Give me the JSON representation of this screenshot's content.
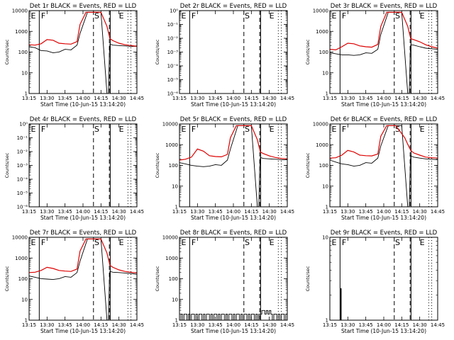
{
  "figure": {
    "background": "#ffffff"
  },
  "colors": {
    "events": "#000000",
    "lld": "#dd0000",
    "axes": "#000000"
  },
  "common": {
    "x_ticks": [
      "13:15",
      "13:30",
      "13:45",
      "14:00",
      "14:15",
      "14:30",
      "14:45"
    ],
    "x_label": "Start Time (10-Jun-15 13:14:20)",
    "y_label": "Counts/sec",
    "x_range_min": [
      0,
      36
    ],
    "marker_lines_min": {
      "solid": [
        3.4,
        27.1
      ],
      "dashed": [
        21.5,
        26.8
      ],
      "dotted": [
        33.0,
        34.0
      ]
    }
  },
  "chart_data": [
    {
      "type": "line",
      "title": "Det 1r BLACK = Events, RED = LLD",
      "yscale": "log",
      "ylim": [
        1,
        12000
      ],
      "y_ticks": [
        "1",
        "10",
        "100",
        "1000",
        "10000"
      ],
      "marker_labels": [
        "E",
        "F",
        "S",
        "E"
      ],
      "series": [
        {
          "name": "Events",
          "color": "#000000",
          "x": [
            0,
            2,
            4,
            6,
            8,
            10,
            12,
            14,
            16,
            17,
            19.5,
            20,
            22,
            24,
            26,
            26.5,
            26.8,
            27,
            28,
            30,
            32,
            34,
            36
          ],
          "y": [
            200,
            180,
            130,
            125,
            100,
            110,
            150,
            140,
            240,
            900,
            10000,
            10000,
            10000,
            10000,
            1,
            1,
            100,
            270,
            240,
            230,
            220,
            210,
            210
          ]
        },
        {
          "name": "LLD",
          "color": "#dd0000",
          "x": [
            0,
            2,
            4,
            6,
            8,
            10,
            12,
            14,
            16,
            17,
            19,
            20,
            22,
            24,
            26,
            27,
            28,
            30,
            32,
            34,
            36
          ],
          "y": [
            250,
            240,
            280,
            450,
            420,
            300,
            280,
            270,
            360,
            2500,
            10000,
            10000,
            10000,
            10000,
            2000,
            500,
            400,
            300,
            250,
            230,
            210
          ]
        }
      ]
    },
    {
      "type": "line",
      "title": "Det 2r BLACK = Events, RED = LLD",
      "yscale": "log",
      "ylim": [
        1e-06,
        1
      ],
      "y_ticks": [
        "10⁻⁶",
        "10⁻⁵",
        "10⁻⁴",
        "10⁻³",
        "10⁻²",
        "10⁻¹",
        "10⁰"
      ],
      "marker_labels": [
        "E",
        "F",
        "S",
        "E"
      ],
      "series": []
    },
    {
      "type": "line",
      "title": "Det 3r BLACK = Events, RED = LLD",
      "yscale": "log",
      "ylim": [
        1,
        12000
      ],
      "y_ticks": [
        "1",
        "10",
        "100",
        "1000",
        "10000"
      ],
      "marker_labels": [
        "E",
        "F",
        "S",
        "E"
      ],
      "series": [
        {
          "name": "Events",
          "color": "#000000",
          "x": [
            0,
            2,
            4,
            6,
            8,
            10,
            12,
            14,
            16,
            17,
            19.5,
            20,
            22,
            24,
            26,
            26.5,
            26.8,
            27,
            28,
            30,
            32,
            34,
            36
          ],
          "y": [
            100,
            90,
            80,
            80,
            75,
            80,
            100,
            95,
            150,
            800,
            10000,
            10000,
            10000,
            10000,
            1,
            1,
            100,
            250,
            240,
            200,
            170,
            160,
            150
          ]
        },
        {
          "name": "LLD",
          "color": "#dd0000",
          "x": [
            0,
            2,
            4,
            6,
            8,
            10,
            12,
            14,
            16,
            17,
            19,
            20,
            22,
            24,
            26,
            27,
            28,
            30,
            32,
            34,
            36
          ],
          "y": [
            150,
            140,
            200,
            300,
            280,
            220,
            200,
            190,
            260,
            2000,
            10000,
            10000,
            10000,
            10000,
            2000,
            500,
            450,
            350,
            250,
            200,
            170
          ]
        }
      ]
    },
    {
      "type": "line",
      "title": "Det 4r BLACK = Events, RED = LLD",
      "yscale": "log",
      "ylim": [
        1e-06,
        1
      ],
      "y_ticks": [
        "10⁻⁶",
        "10⁻⁵",
        "10⁻⁴",
        "10⁻³",
        "10⁻²",
        "10⁻¹",
        "10⁰"
      ],
      "marker_labels": [
        "E",
        "F",
        "S",
        "E"
      ],
      "series": []
    },
    {
      "type": "line",
      "title": "Det 5r BLACK = Events, RED = LLD",
      "yscale": "log",
      "ylim": [
        1,
        12000
      ],
      "y_ticks": [
        "1",
        "10",
        "100",
        "1000",
        "10000"
      ],
      "marker_labels": [
        "E",
        "F",
        "S",
        "E"
      ],
      "series": [
        {
          "name": "Events",
          "color": "#000000",
          "x": [
            0,
            2,
            4,
            6,
            8,
            10,
            12,
            14,
            16,
            17,
            19.5,
            20,
            22,
            24,
            26,
            26.5,
            26.8,
            27,
            28,
            30,
            32,
            34,
            36
          ],
          "y": [
            150,
            130,
            110,
            100,
            95,
            100,
            120,
            110,
            200,
            700,
            10000,
            10000,
            10000,
            10000,
            1,
            1,
            100,
            270,
            240,
            230,
            220,
            210,
            210
          ]
        },
        {
          "name": "LLD",
          "color": "#dd0000",
          "x": [
            0,
            2,
            4,
            6,
            8,
            10,
            12,
            14,
            16,
            17,
            19,
            20,
            22,
            24,
            26,
            27,
            28,
            30,
            32,
            34,
            36
          ],
          "y": [
            200,
            220,
            280,
            700,
            550,
            330,
            300,
            290,
            380,
            2500,
            10000,
            10000,
            10000,
            10000,
            2000,
            500,
            420,
            320,
            270,
            240,
            230
          ]
        }
      ]
    },
    {
      "type": "line",
      "title": "Det 6r BLACK = Events, RED = LLD",
      "yscale": "log",
      "ylim": [
        1,
        12000
      ],
      "y_ticks": [
        "1",
        "10",
        "100",
        "1000",
        "10000"
      ],
      "marker_labels": [
        "E",
        "F",
        "S",
        "E"
      ],
      "series": [
        {
          "name": "Events",
          "color": "#000000",
          "x": [
            0,
            2,
            4,
            6,
            8,
            10,
            12,
            14,
            16,
            17,
            19.5,
            20,
            22,
            24,
            26,
            26.5,
            26.8,
            27,
            28,
            30,
            32,
            34,
            36
          ],
          "y": [
            200,
            160,
            130,
            120,
            100,
            110,
            150,
            140,
            250,
            1000,
            10000,
            10000,
            10000,
            10000,
            1,
            1,
            100,
            320,
            280,
            250,
            230,
            220,
            210
          ]
        },
        {
          "name": "LLD",
          "color": "#dd0000",
          "x": [
            0,
            2,
            4,
            6,
            8,
            10,
            12,
            14,
            16,
            17,
            19,
            20,
            22,
            24,
            25,
            26,
            27,
            28,
            30,
            32,
            34,
            36
          ],
          "y": [
            250,
            260,
            350,
            600,
            500,
            350,
            330,
            320,
            400,
            3000,
            10000,
            10000,
            10000,
            4000,
            2500,
            1200,
            600,
            450,
            350,
            280,
            260,
            250
          ]
        }
      ]
    },
    {
      "type": "line",
      "title": "Det 7r BLACK = Events, RED = LLD",
      "yscale": "log",
      "ylim": [
        1,
        12000
      ],
      "y_ticks": [
        "1",
        "10",
        "100",
        "1000",
        "10000"
      ],
      "marker_labels": [
        "E",
        "F",
        "S",
        "E"
      ],
      "series": [
        {
          "name": "Events",
          "color": "#000000",
          "x": [
            0,
            2,
            4,
            6,
            8,
            10,
            12,
            14,
            16,
            17,
            19.5,
            20,
            22,
            24,
            26,
            26.5,
            26.8,
            27,
            28,
            30,
            32,
            34,
            36
          ],
          "y": [
            150,
            130,
            110,
            105,
            100,
            110,
            140,
            130,
            220,
            800,
            10000,
            10000,
            10000,
            10000,
            1,
            1,
            100,
            250,
            230,
            220,
            210,
            200,
            180
          ]
        },
        {
          "name": "LLD",
          "color": "#dd0000",
          "x": [
            0,
            2,
            4,
            6,
            8,
            10,
            12,
            14,
            16,
            17,
            19,
            20,
            22,
            24,
            26,
            27,
            28,
            30,
            32,
            34,
            36
          ],
          "y": [
            220,
            230,
            280,
            400,
            350,
            280,
            260,
            250,
            330,
            2500,
            10000,
            10000,
            10000,
            10000,
            2000,
            500,
            400,
            300,
            250,
            230,
            210
          ]
        }
      ]
    },
    {
      "type": "line",
      "title": "Det 8r BLACK = Events, RED = LLD",
      "yscale": "log",
      "ylim": [
        1,
        12000
      ],
      "y_ticks": [
        "1",
        "10",
        "100",
        "1000",
        "10000"
      ],
      "marker_labels": [
        "E",
        "F",
        "S",
        "E"
      ],
      "series": [
        {
          "name": "Events",
          "color": "#000000",
          "x": [
            0,
            0.5,
            1,
            1.5,
            2,
            2.5,
            3,
            3.5,
            4,
            4.5,
            5,
            5.5,
            6,
            6.5,
            7,
            7.5,
            8,
            8.5,
            9,
            9.5,
            10,
            10.5,
            11,
            11.5,
            12,
            12.5,
            13,
            13.5,
            14,
            14.5,
            15,
            15.5,
            16,
            16.5,
            17,
            17.5,
            18,
            18.5,
            19,
            19.5,
            20,
            20.5,
            21,
            21.5,
            22,
            22.5,
            23,
            23.5,
            24,
            24.5,
            25,
            25.5,
            26,
            26.5,
            27,
            27.5,
            28,
            28.5,
            29,
            29.5,
            30,
            30.5,
            31,
            31.5,
            32,
            32.5,
            33,
            33.5,
            34,
            34.5,
            35,
            35.5,
            36
          ],
          "y": [
            1,
            2,
            1,
            2,
            2,
            1,
            2,
            1,
            2,
            2,
            1,
            2,
            1,
            2,
            2,
            1,
            2,
            1,
            2,
            2,
            1,
            2,
            1,
            2,
            2,
            1,
            2,
            1,
            2,
            2,
            1,
            2,
            1,
            2,
            2,
            1,
            2,
            1,
            2,
            2,
            1,
            2,
            1,
            2,
            2,
            1,
            2,
            1,
            2,
            2,
            1,
            2,
            1,
            2,
            2,
            3,
            3,
            2,
            3,
            2,
            3,
            2,
            1,
            2,
            2,
            1,
            2,
            1,
            2,
            2,
            1,
            2,
            1
          ]
        }
      ]
    },
    {
      "type": "line",
      "title": "Det 9r BLACK = Events, RED = LLD",
      "yscale": "log",
      "ylim": [
        1,
        10
      ],
      "y_ticks": [
        "1",
        "10"
      ],
      "marker_labels": [
        "E",
        "F",
        "S",
        "E"
      ],
      "series": [
        {
          "name": "Events",
          "color": "#000000",
          "x": [
            3.6,
            3.6,
            3.8,
            3.8
          ],
          "y": [
            1,
            2.4,
            2.4,
            1
          ]
        }
      ]
    }
  ]
}
